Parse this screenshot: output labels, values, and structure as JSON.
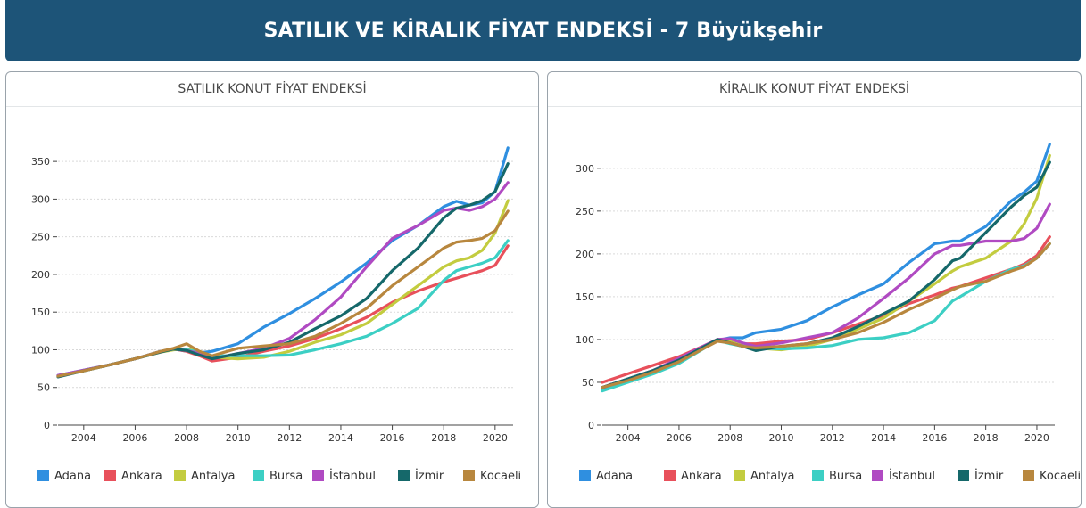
{
  "header": {
    "title": "SATILIK VE KİRALIK FİYAT ENDEKSİ - 7 Büyükşehir"
  },
  "colors": {
    "header_bg": "#1d5478",
    "Adana": "#2f8fe0",
    "Ankara": "#e8505b",
    "Antalya": "#c3cc3f",
    "Bursa": "#3ccfc4",
    "İstanbul": "#b04ac2",
    "İzmir": "#15686a",
    "Kocaeli": "#b8873e"
  },
  "chart_data": [
    {
      "type": "line",
      "title": "SATILIK KONUT FİYAT ENDEKSİ",
      "xlabel": "",
      "ylabel": "",
      "xlim": [
        2003.0,
        2020.7
      ],
      "ylim": [
        0,
        375
      ],
      "xticks": [
        2004,
        2006,
        2008,
        2010,
        2012,
        2014,
        2016,
        2018,
        2020
      ],
      "yticks": [
        0,
        50,
        100,
        150,
        200,
        250,
        300,
        350
      ],
      "grid": true,
      "legend": "bottom",
      "series": [
        {
          "name": "Adana",
          "x": [
            2003,
            2004,
            2005,
            2006,
            2007,
            2007.5,
            2008,
            2008.5,
            2009,
            2010,
            2011,
            2012,
            2013,
            2014,
            2015,
            2016,
            2017,
            2018,
            2018.5,
            2019,
            2019.5,
            2020,
            2020.5
          ],
          "y": [
            66,
            73,
            80,
            88,
            98,
            101,
            98,
            96,
            98,
            108,
            130,
            148,
            168,
            190,
            215,
            245,
            265,
            290,
            297,
            292,
            295,
            310,
            368
          ]
        },
        {
          "name": "Ankara",
          "x": [
            2003,
            2004,
            2005,
            2006,
            2007,
            2007.5,
            2008,
            2008.5,
            2009,
            2010,
            2011,
            2012,
            2013,
            2014,
            2015,
            2016,
            2017,
            2018,
            2018.5,
            2019,
            2019.5,
            2020,
            2020.5
          ],
          "y": [
            65,
            72,
            80,
            88,
            97,
            101,
            98,
            92,
            85,
            90,
            98,
            105,
            115,
            128,
            143,
            163,
            178,
            190,
            195,
            200,
            205,
            212,
            238
          ]
        },
        {
          "name": "Antalya",
          "x": [
            2003,
            2004,
            2005,
            2006,
            2007,
            2007.5,
            2008,
            2008.5,
            2009,
            2010,
            2011,
            2012,
            2013,
            2014,
            2015,
            2016,
            2017,
            2018,
            2018.5,
            2019,
            2019.5,
            2020,
            2020.5
          ],
          "y": [
            65,
            72,
            80,
            88,
            97,
            100,
            101,
            98,
            90,
            88,
            90,
            98,
            110,
            120,
            135,
            160,
            185,
            210,
            218,
            222,
            232,
            255,
            298
          ]
        },
        {
          "name": "Bursa",
          "x": [
            2003,
            2004,
            2005,
            2006,
            2007,
            2007.5,
            2008,
            2008.5,
            2009,
            2010,
            2011,
            2012,
            2013,
            2014,
            2015,
            2016,
            2017,
            2018,
            2018.5,
            2019,
            2019.5,
            2020,
            2020.5
          ],
          "y": [
            65,
            72,
            80,
            88,
            98,
            101,
            100,
            97,
            92,
            92,
            92,
            93,
            100,
            108,
            118,
            135,
            155,
            192,
            205,
            210,
            215,
            222,
            245
          ]
        },
        {
          "name": "İstanbul",
          "x": [
            2003,
            2004,
            2005,
            2006,
            2007,
            2007.5,
            2008,
            2008.5,
            2009,
            2010,
            2011,
            2012,
            2013,
            2014,
            2015,
            2016,
            2017,
            2018,
            2018.5,
            2019,
            2019.5,
            2020,
            2020.5
          ],
          "y": [
            66,
            73,
            80,
            88,
            98,
            101,
            99,
            95,
            88,
            95,
            102,
            115,
            140,
            170,
            210,
            248,
            265,
            285,
            288,
            285,
            290,
            300,
            322
          ]
        },
        {
          "name": "İzmir",
          "x": [
            2003,
            2004,
            2005,
            2006,
            2007,
            2007.5,
            2008,
            2008.5,
            2009,
            2010,
            2011,
            2012,
            2013,
            2014,
            2015,
            2016,
            2017,
            2018,
            2018.5,
            2019,
            2019.5,
            2020,
            2020.5
          ],
          "y": [
            64,
            72,
            80,
            88,
            97,
            101,
            99,
            93,
            88,
            95,
            100,
            110,
            128,
            145,
            168,
            205,
            235,
            275,
            288,
            292,
            298,
            310,
            347
          ]
        },
        {
          "name": "Kocaeli",
          "x": [
            2003,
            2004,
            2005,
            2006,
            2007,
            2007.5,
            2008,
            2008.5,
            2009,
            2010,
            2011,
            2012,
            2013,
            2014,
            2015,
            2016,
            2017,
            2018,
            2018.5,
            2019,
            2019.5,
            2020,
            2020.5
          ],
          "y": [
            65,
            72,
            80,
            88,
            98,
            102,
            108,
            98,
            92,
            102,
            105,
            108,
            118,
            135,
            155,
            185,
            210,
            235,
            243,
            245,
            248,
            258,
            284
          ]
        }
      ]
    },
    {
      "type": "line",
      "title": "KİRALIK KONUT FİYAT ENDEKSİ",
      "xlabel": "",
      "ylabel": "",
      "xlim": [
        2003.0,
        2020.7
      ],
      "ylim": [
        0,
        330
      ],
      "xticks": [
        2004,
        2006,
        2008,
        2010,
        2012,
        2014,
        2016,
        2018,
        2020
      ],
      "yticks": [
        0,
        50,
        100,
        150,
        200,
        250,
        300
      ],
      "grid": true,
      "legend": "bottom",
      "series": [
        {
          "name": "Adana",
          "x": [
            2003,
            2004,
            2005,
            2006,
            2007,
            2007.5,
            2008,
            2008.5,
            2009,
            2010,
            2011,
            2012,
            2013,
            2014,
            2015,
            2016,
            2016.7,
            2017,
            2018,
            2019,
            2019.5,
            2020,
            2020.5
          ],
          "y": [
            42,
            52,
            62,
            75,
            92,
            99,
            102,
            102,
            108,
            112,
            122,
            138,
            152,
            165,
            190,
            212,
            215,
            215,
            232,
            262,
            272,
            285,
            328
          ]
        },
        {
          "name": "Ankara",
          "x": [
            2003,
            2004,
            2005,
            2006,
            2007,
            2007.5,
            2008,
            2008.5,
            2009,
            2010,
            2011,
            2012,
            2013,
            2014,
            2015,
            2016,
            2016.7,
            2017,
            2018,
            2019,
            2019.5,
            2020,
            2020.5
          ],
          "y": [
            50,
            60,
            70,
            80,
            93,
            100,
            98,
            95,
            95,
            98,
            100,
            108,
            118,
            128,
            142,
            152,
            160,
            162,
            172,
            182,
            188,
            198,
            220
          ]
        },
        {
          "name": "Antalya",
          "x": [
            2003,
            2004,
            2005,
            2006,
            2007,
            2007.5,
            2008,
            2008.5,
            2009,
            2010,
            2011,
            2012,
            2013,
            2014,
            2015,
            2016,
            2016.7,
            2017,
            2018,
            2019,
            2019.5,
            2020,
            2020.5
          ],
          "y": [
            44,
            54,
            64,
            76,
            92,
            100,
            98,
            93,
            90,
            88,
            92,
            100,
            112,
            125,
            145,
            165,
            180,
            185,
            195,
            215,
            235,
            265,
            315
          ]
        },
        {
          "name": "Bursa",
          "x": [
            2003,
            2004,
            2005,
            2006,
            2007,
            2007.5,
            2008,
            2008.5,
            2009,
            2010,
            2011,
            2012,
            2013,
            2014,
            2015,
            2016,
            2016.7,
            2017,
            2018,
            2019,
            2019.5,
            2020,
            2020.5
          ],
          "y": [
            40,
            50,
            60,
            72,
            90,
            99,
            95,
            92,
            90,
            89,
            90,
            93,
            100,
            102,
            108,
            122,
            145,
            150,
            168,
            182,
            186,
            195,
            212
          ]
        },
        {
          "name": "İstanbul",
          "x": [
            2003,
            2004,
            2005,
            2006,
            2007,
            2007.5,
            2008,
            2008.5,
            2009,
            2010,
            2011,
            2012,
            2013,
            2014,
            2015,
            2016,
            2016.7,
            2017,
            2018,
            2019,
            2019.5,
            2020,
            2020.5
          ],
          "y": [
            44,
            54,
            64,
            78,
            93,
            100,
            101,
            96,
            92,
            96,
            102,
            108,
            125,
            148,
            172,
            200,
            210,
            210,
            215,
            215,
            218,
            230,
            258
          ]
        },
        {
          "name": "İzmir",
          "x": [
            2003,
            2004,
            2005,
            2006,
            2007,
            2007.5,
            2008,
            2008.5,
            2009,
            2010,
            2011,
            2012,
            2013,
            2014,
            2015,
            2016,
            2016.7,
            2017,
            2018,
            2019,
            2019.5,
            2020,
            2020.5
          ],
          "y": [
            44,
            54,
            64,
            76,
            92,
            100,
            96,
            92,
            87,
            92,
            95,
            102,
            115,
            130,
            145,
            170,
            192,
            195,
            225,
            255,
            268,
            278,
            307
          ]
        },
        {
          "name": "Kocaeli",
          "x": [
            2003,
            2004,
            2005,
            2006,
            2007,
            2007.5,
            2008,
            2008.5,
            2009,
            2010,
            2011,
            2012,
            2013,
            2014,
            2015,
            2016,
            2016.7,
            2017,
            2018,
            2019,
            2019.5,
            2020,
            2020.5
          ],
          "y": [
            44,
            52,
            62,
            74,
            90,
            98,
            96,
            92,
            90,
            92,
            95,
            100,
            108,
            120,
            135,
            148,
            158,
            162,
            168,
            180,
            185,
            195,
            212
          ]
        }
      ]
    }
  ]
}
